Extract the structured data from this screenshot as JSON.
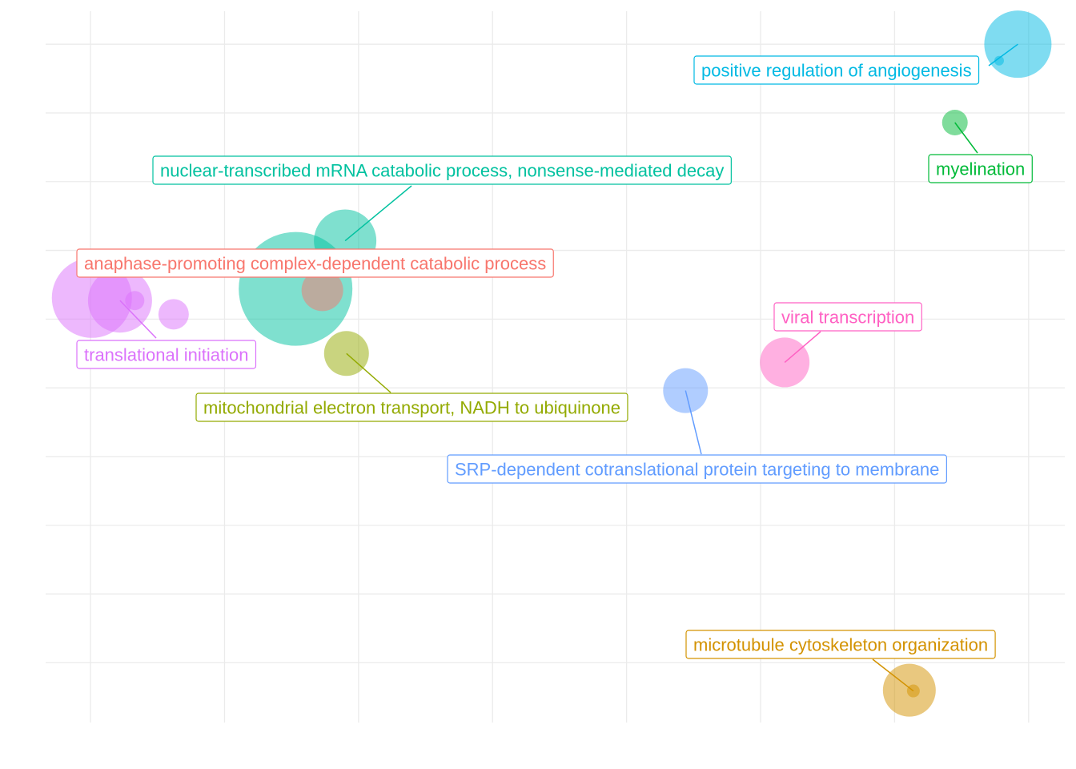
{
  "chart_data": {
    "type": "scatter",
    "xlim": [
      -0.335,
      7.27
    ],
    "ylim": [
      -0.87,
      9.48
    ],
    "xticks": [
      0,
      1,
      2,
      3,
      4,
      5,
      6,
      7
    ],
    "yticks": [
      0,
      1,
      2,
      3,
      4,
      5,
      6,
      7,
      8,
      9
    ],
    "grid": true,
    "series": [
      {
        "name": "positive regulation of angiogenesis",
        "color": "#00B9E3",
        "x": [
          6.92,
          6.78
        ],
        "y": [
          9.0,
          8.76
        ],
        "size": [
          42,
          6
        ]
      },
      {
        "name": "myelination",
        "color": "#00BA38",
        "x": [
          6.45
        ],
        "y": [
          7.86
        ],
        "size": [
          16
        ]
      },
      {
        "name": "nuclear-transcribed mRNA catabolic process, nonsense-mediated decay",
        "color": "#00C19F",
        "x": [
          1.53,
          1.9
        ],
        "y": [
          5.44,
          6.14
        ],
        "size": [
          71,
          39
        ]
      },
      {
        "name": "anaphase-promoting complex-dependent catabolic process",
        "color": "#F8766D",
        "x": [
          1.73
        ],
        "y": [
          5.42
        ],
        "size": [
          26
        ]
      },
      {
        "name": "translational initiation",
        "color": "#DB72FB",
        "x": [
          0.01,
          0.22,
          0.33,
          0.62
        ],
        "y": [
          5.31,
          5.27,
          5.27,
          5.07
        ],
        "size": [
          50,
          40,
          12,
          19
        ]
      },
      {
        "name": "mitochondrial electron transport, NADH to ubiquinone",
        "color": "#93AA00",
        "x": [
          1.91
        ],
        "y": [
          4.5
        ],
        "size": [
          28
        ]
      },
      {
        "name": "viral transcription",
        "color": "#FF61C3",
        "x": [
          5.18
        ],
        "y": [
          4.37
        ],
        "size": [
          31
        ]
      },
      {
        "name": "SRP-dependent cotranslational protein targeting to membrane",
        "color": "#619CFF",
        "x": [
          4.44
        ],
        "y": [
          3.96
        ],
        "size": [
          28
        ]
      },
      {
        "name": "microtubule cytoskeleton organization",
        "color": "#D39200",
        "x": [
          6.11,
          6.14
        ],
        "y": [
          -0.4,
          -0.41
        ],
        "size": [
          33,
          8
        ]
      }
    ]
  }
}
